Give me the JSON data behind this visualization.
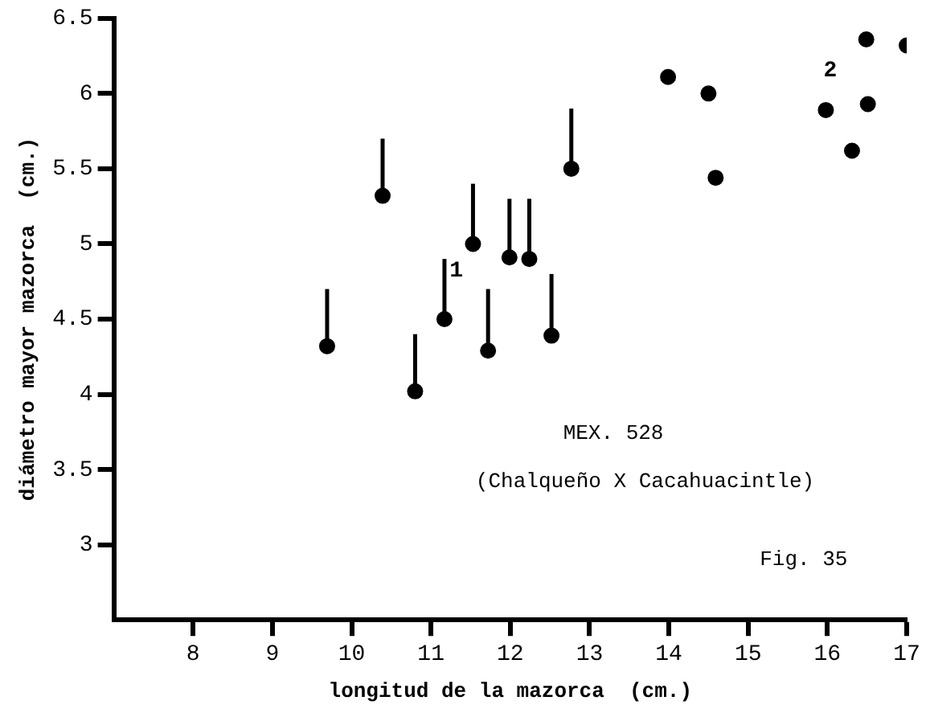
{
  "chart_data": {
    "type": "scatter",
    "xlabel": "longitud de la mazorca  (cm.)",
    "ylabel": "diámetro mayor mazorca  (cm.)",
    "xlim": [
      7,
      17
    ],
    "xticks": [
      8,
      9,
      10,
      11,
      12,
      13,
      14,
      15,
      16,
      17
    ],
    "ylim": [
      2.5,
      6.5
    ],
    "yticks": [
      3,
      3.5,
      4,
      4.5,
      5,
      5.5,
      6,
      6.5
    ],
    "grid": false,
    "legend": false,
    "series": [
      {
        "name": "1",
        "color": "#000000",
        "marker": "circle",
        "x": [
          10.39,
          12.77,
          11.53,
          11.99,
          12.24,
          11.17,
          9.69,
          11.72,
          12.52,
          10.8
        ],
        "values": [
          5.32,
          5.5,
          5.0,
          4.91,
          4.9,
          4.5,
          4.32,
          4.29,
          4.39,
          4.02
        ],
        "errors": [
          [
            5.32,
            5.7
          ],
          [
            5.5,
            5.9
          ],
          [
            5.0,
            5.4
          ],
          [
            4.91,
            5.3
          ],
          [
            4.9,
            5.3
          ],
          [
            4.5,
            4.9
          ],
          [
            4.32,
            4.7
          ],
          [
            4.29,
            4.7
          ],
          [
            4.39,
            4.8
          ],
          [
            4.02,
            4.4
          ]
        ]
      },
      {
        "name": "2",
        "color": "#000000",
        "marker": "circle",
        "x": [
          13.99,
          14.5,
          14.59,
          15.98,
          16.51,
          16.49,
          17.0,
          16.31
        ],
        "values": [
          6.11,
          6.0,
          5.44,
          5.89,
          5.93,
          6.36,
          6.32,
          5.62
        ]
      }
    ],
    "annotations": [
      "MEX. 528",
      "(Chalqueño X Cacahuacintle)",
      "Fig. 35"
    ]
  }
}
